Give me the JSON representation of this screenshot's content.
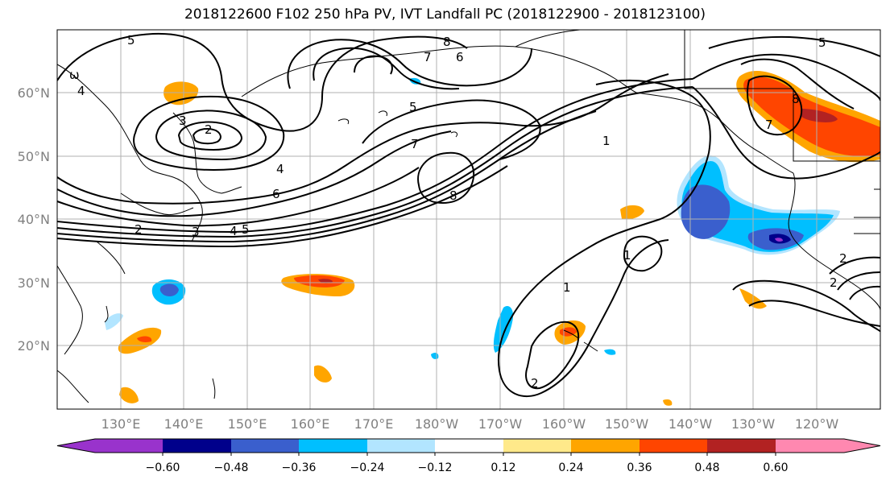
{
  "title": "2018122600 F102 250 hPa PV, IVT Landfall PC (2018122900 - 2018123100)",
  "lon_labels": [
    "130°E",
    "140°E",
    "150°E",
    "160°E",
    "170°E",
    "180°W",
    "170°W",
    "160°W",
    "150°W",
    "140°W",
    "130°W",
    "120°W"
  ],
  "lat_labels": [
    "60°N",
    "50°N",
    "40°N",
    "30°N",
    "20°N"
  ],
  "colorbar": {
    "tick_labels": [
      "−0.60",
      "−0.48",
      "−0.36",
      "−0.24",
      "−0.12",
      "0.12",
      "0.24",
      "0.36",
      "0.48",
      "0.60"
    ],
    "colors": [
      "#9933cc",
      "#00008b",
      "#3a5fcd",
      "#00bfff",
      "#b2e5ff",
      "#ffffff",
      "#ffe98a",
      "#ffa500",
      "#ff4500",
      "#b22222",
      "#ff88b0"
    ]
  },
  "contour_labels": [
    "5",
    "ω",
    "4",
    "3",
    "2",
    "4",
    "6",
    "2",
    "3",
    "4",
    "5",
    "8",
    "7",
    "6",
    "5",
    "7",
    "8",
    "1",
    "1",
    "2",
    "1",
    "2",
    "5",
    "8",
    "7",
    "2"
  ]
}
